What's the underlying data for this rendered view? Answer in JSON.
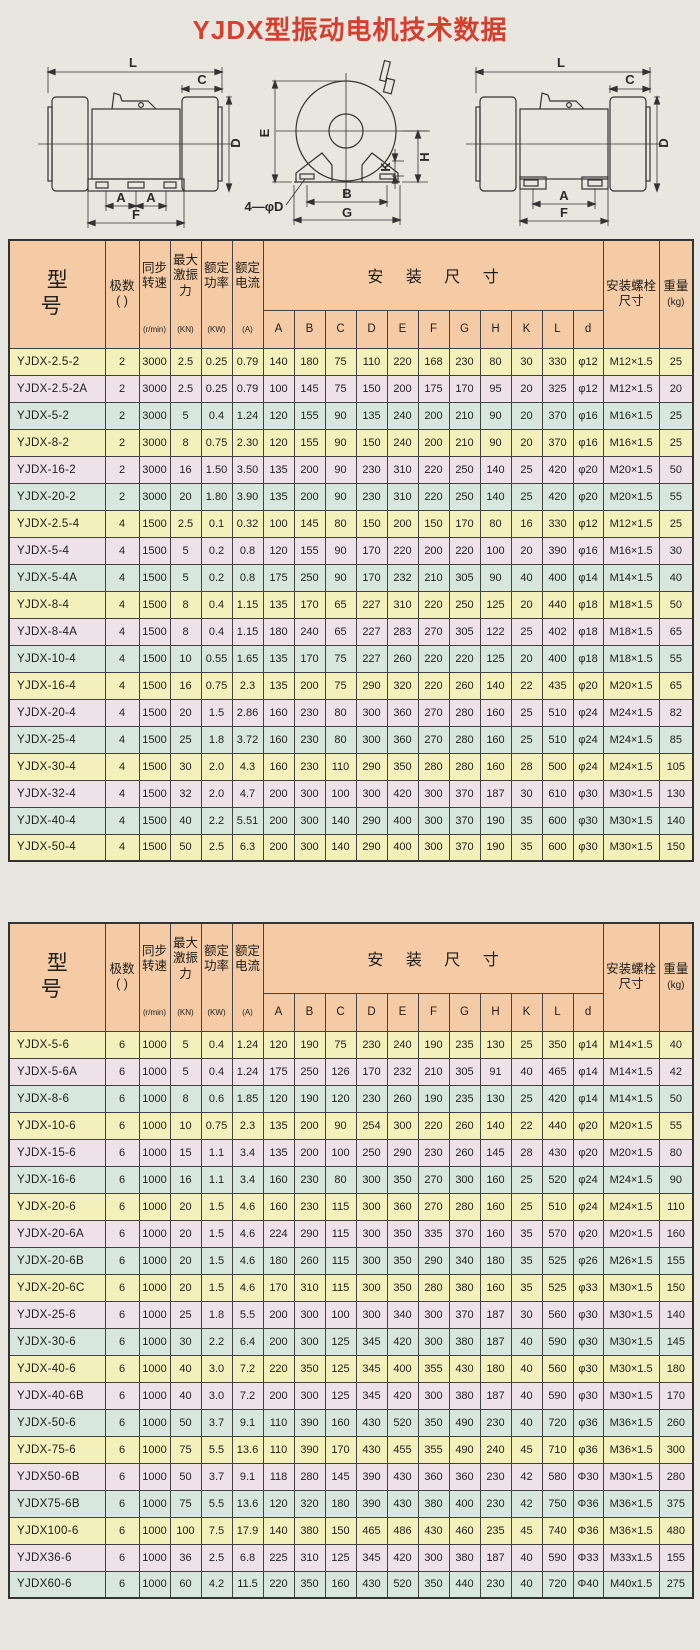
{
  "page": {
    "title": "YJDX型振动电机技术数据"
  },
  "diagram_labels": {
    "L": "L",
    "C": "C",
    "D": "D",
    "A": "A",
    "F": "F",
    "E": "E",
    "K": "K",
    "H": "H",
    "B": "B",
    "G": "G",
    "holes": "4—φD"
  },
  "header": {
    "model": "型 号",
    "poles": "极数",
    "poles_paren": "(  )",
    "speed": "同步转速",
    "speed_unit": "(r/min)",
    "force": "最大激振力",
    "force_unit": "(KN)",
    "power": "额定功率",
    "power_unit": "(KW)",
    "current": "额定电流",
    "current_unit": "(A)",
    "dims": "安 装 尺 寸",
    "dim_cols": [
      "A",
      "B",
      "C",
      "D",
      "E",
      "F",
      "G",
      "H",
      "K",
      "L",
      "d"
    ],
    "bolt": "安装螺栓尺寸",
    "weight": "重量",
    "weight_unit": "(kg)"
  },
  "table1": {
    "rows": [
      [
        "YJDX-2.5-2",
        "2",
        "3000",
        "2.5",
        "0.25",
        "0.79",
        "140",
        "180",
        "75",
        "110",
        "220",
        "168",
        "230",
        "80",
        "30",
        "330",
        "φ12",
        "M12×1.5",
        "25"
      ],
      [
        "YJDX-2.5-2A",
        "2",
        "3000",
        "2.5",
        "0.25",
        "0.79",
        "100",
        "145",
        "75",
        "150",
        "200",
        "175",
        "170",
        "95",
        "20",
        "325",
        "φ12",
        "M12×1.5",
        "20"
      ],
      [
        "YJDX-5-2",
        "2",
        "3000",
        "5",
        "0.4",
        "1.24",
        "120",
        "155",
        "90",
        "135",
        "240",
        "200",
        "210",
        "90",
        "20",
        "370",
        "φ16",
        "M16×1.5",
        "25"
      ],
      [
        "YJDX-8-2",
        "2",
        "3000",
        "8",
        "0.75",
        "2.30",
        "120",
        "155",
        "90",
        "150",
        "240",
        "200",
        "210",
        "90",
        "20",
        "370",
        "φ16",
        "M16×1.5",
        "25"
      ],
      [
        "YJDX-16-2",
        "2",
        "3000",
        "16",
        "1.50",
        "3.50",
        "135",
        "200",
        "90",
        "230",
        "310",
        "220",
        "250",
        "140",
        "25",
        "420",
        "φ20",
        "M20×1.5",
        "50"
      ],
      [
        "YJDX-20-2",
        "2",
        "3000",
        "20",
        "1.80",
        "3.90",
        "135",
        "200",
        "90",
        "230",
        "310",
        "220",
        "250",
        "140",
        "25",
        "420",
        "φ20",
        "M20×1.5",
        "55"
      ],
      [
        "YJDX-2.5-4",
        "4",
        "1500",
        "2.5",
        "0.1",
        "0.32",
        "100",
        "145",
        "80",
        "150",
        "200",
        "150",
        "170",
        "80",
        "16",
        "330",
        "φ12",
        "M12×1.5",
        "25"
      ],
      [
        "YJDX-5-4",
        "4",
        "1500",
        "5",
        "0.2",
        "0.8",
        "120",
        "155",
        "90",
        "170",
        "220",
        "200",
        "220",
        "100",
        "20",
        "390",
        "φ16",
        "M16×1.5",
        "30"
      ],
      [
        "YJDX-5-4A",
        "4",
        "1500",
        "5",
        "0.2",
        "0.8",
        "175",
        "250",
        "90",
        "170",
        "232",
        "210",
        "305",
        "90",
        "40",
        "400",
        "φ14",
        "M14×1.5",
        "40"
      ],
      [
        "YJDX-8-4",
        "4",
        "1500",
        "8",
        "0.4",
        "1.15",
        "135",
        "170",
        "65",
        "227",
        "310",
        "220",
        "250",
        "125",
        "20",
        "440",
        "φ18",
        "M18×1.5",
        "50"
      ],
      [
        "YJDX-8-4A",
        "4",
        "1500",
        "8",
        "0.4",
        "1.15",
        "180",
        "240",
        "65",
        "227",
        "283",
        "270",
        "305",
        "122",
        "25",
        "402",
        "φ18",
        "M18×1.5",
        "65"
      ],
      [
        "YJDX-10-4",
        "4",
        "1500",
        "10",
        "0.55",
        "1.65",
        "135",
        "170",
        "75",
        "227",
        "260",
        "220",
        "220",
        "125",
        "20",
        "400",
        "φ18",
        "M18×1.5",
        "55"
      ],
      [
        "YJDX-16-4",
        "4",
        "1500",
        "16",
        "0.75",
        "2.3",
        "135",
        "200",
        "75",
        "290",
        "320",
        "220",
        "260",
        "140",
        "22",
        "435",
        "φ20",
        "M20×1.5",
        "65"
      ],
      [
        "YJDX-20-4",
        "4",
        "1500",
        "20",
        "1.5",
        "2.86",
        "160",
        "230",
        "80",
        "300",
        "360",
        "270",
        "280",
        "160",
        "25",
        "510",
        "φ24",
        "M24×1.5",
        "82"
      ],
      [
        "YJDX-25-4",
        "4",
        "1500",
        "25",
        "1.8",
        "3.72",
        "160",
        "230",
        "80",
        "300",
        "360",
        "270",
        "280",
        "160",
        "25",
        "510",
        "φ24",
        "M24×1.5",
        "85"
      ],
      [
        "YJDX-30-4",
        "4",
        "1500",
        "30",
        "2.0",
        "4.3",
        "160",
        "230",
        "110",
        "290",
        "350",
        "280",
        "280",
        "160",
        "28",
        "500",
        "φ24",
        "M24×1.5",
        "105"
      ],
      [
        "YJDX-32-4",
        "4",
        "1500",
        "32",
        "2.0",
        "4.7",
        "200",
        "300",
        "100",
        "300",
        "420",
        "300",
        "370",
        "187",
        "30",
        "610",
        "φ30",
        "M30×1.5",
        "130"
      ],
      [
        "YJDX-40-4",
        "4",
        "1500",
        "40",
        "2.2",
        "5.51",
        "200",
        "300",
        "140",
        "290",
        "400",
        "300",
        "370",
        "190",
        "35",
        "600",
        "φ30",
        "M30×1.5",
        "140"
      ],
      [
        "YJDX-50-4",
        "4",
        "1500",
        "50",
        "2.5",
        "6.3",
        "200",
        "300",
        "140",
        "290",
        "400",
        "300",
        "370",
        "190",
        "35",
        "600",
        "φ30",
        "M30×1.5",
        "150"
      ]
    ]
  },
  "table2": {
    "rows": [
      [
        "YJDX-5-6",
        "6",
        "1000",
        "5",
        "0.4",
        "1.24",
        "120",
        "190",
        "75",
        "230",
        "240",
        "190",
        "235",
        "130",
        "25",
        "350",
        "φ14",
        "M14×1.5",
        "40"
      ],
      [
        "YJDX-5-6A",
        "6",
        "1000",
        "5",
        "0.4",
        "1.24",
        "175",
        "250",
        "126",
        "170",
        "232",
        "210",
        "305",
        "91",
        "40",
        "465",
        "φ14",
        "M14×1.5",
        "42"
      ],
      [
        "YJDX-8-6",
        "6",
        "1000",
        "8",
        "0.6",
        "1.85",
        "120",
        "190",
        "120",
        "230",
        "260",
        "190",
        "235",
        "130",
        "25",
        "420",
        "φ14",
        "M14×1.5",
        "50"
      ],
      [
        "YJDX-10-6",
        "6",
        "1000",
        "10",
        "0.75",
        "2.3",
        "135",
        "200",
        "90",
        "254",
        "300",
        "220",
        "260",
        "140",
        "22",
        "440",
        "φ20",
        "M20×1.5",
        "55"
      ],
      [
        "YJDX-15-6",
        "6",
        "1000",
        "15",
        "1.1",
        "3.4",
        "135",
        "200",
        "100",
        "250",
        "290",
        "230",
        "260",
        "145",
        "28",
        "430",
        "φ20",
        "M20×1.5",
        "80"
      ],
      [
        "YJDX-16-6",
        "6",
        "1000",
        "16",
        "1.1",
        "3.4",
        "160",
        "230",
        "80",
        "300",
        "350",
        "270",
        "300",
        "160",
        "25",
        "520",
        "φ24",
        "M24×1.5",
        "90"
      ],
      [
        "YJDX-20-6",
        "6",
        "1000",
        "20",
        "1.5",
        "4.6",
        "160",
        "230",
        "115",
        "300",
        "360",
        "270",
        "280",
        "160",
        "25",
        "510",
        "φ24",
        "M24×1.5",
        "110"
      ],
      [
        "YJDX-20-6A",
        "6",
        "1000",
        "20",
        "1.5",
        "4.6",
        "224",
        "290",
        "115",
        "300",
        "350",
        "335",
        "370",
        "160",
        "35",
        "570",
        "φ20",
        "M20×1.5",
        "160"
      ],
      [
        "YJDX-20-6B",
        "6",
        "1000",
        "20",
        "1.5",
        "4.6",
        "180",
        "260",
        "115",
        "300",
        "350",
        "290",
        "340",
        "180",
        "35",
        "525",
        "φ26",
        "M26×1.5",
        "155"
      ],
      [
        "YJDX-20-6C",
        "6",
        "1000",
        "20",
        "1.5",
        "4.6",
        "170",
        "310",
        "115",
        "300",
        "350",
        "280",
        "380",
        "160",
        "35",
        "525",
        "φ33",
        "M30×1.5",
        "150"
      ],
      [
        "YJDX-25-6",
        "6",
        "1000",
        "25",
        "1.8",
        "5.5",
        "200",
        "300",
        "100",
        "300",
        "340",
        "300",
        "370",
        "187",
        "30",
        "560",
        "φ30",
        "M30×1.5",
        "140"
      ],
      [
        "YJDX-30-6",
        "6",
        "1000",
        "30",
        "2.2",
        "6.4",
        "200",
        "300",
        "125",
        "345",
        "420",
        "300",
        "380",
        "187",
        "40",
        "590",
        "φ30",
        "M30×1.5",
        "145"
      ],
      [
        "YJDX-40-6",
        "6",
        "1000",
        "40",
        "3.0",
        "7.2",
        "220",
        "350",
        "125",
        "345",
        "400",
        "355",
        "430",
        "180",
        "40",
        "560",
        "φ30",
        "M30×1.5",
        "180"
      ],
      [
        "YJDX-40-6B",
        "6",
        "1000",
        "40",
        "3.0",
        "7.2",
        "200",
        "300",
        "125",
        "345",
        "420",
        "300",
        "380",
        "187",
        "40",
        "590",
        "φ30",
        "M30×1.5",
        "170"
      ],
      [
        "YJDX-50-6",
        "6",
        "1000",
        "50",
        "3.7",
        "9.1",
        "110",
        "390",
        "160",
        "430",
        "520",
        "350",
        "490",
        "230",
        "40",
        "720",
        "φ36",
        "M36×1.5",
        "260"
      ],
      [
        "YJDX-75-6",
        "6",
        "1000",
        "75",
        "5.5",
        "13.6",
        "110",
        "390",
        "170",
        "430",
        "455",
        "355",
        "490",
        "240",
        "45",
        "710",
        "φ36",
        "M36×1.5",
        "300"
      ],
      [
        "YJDX50-6B",
        "6",
        "1000",
        "50",
        "3.7",
        "9.1",
        "118",
        "280",
        "145",
        "390",
        "430",
        "360",
        "360",
        "230",
        "42",
        "580",
        "Φ30",
        "M30×1.5",
        "280"
      ],
      [
        "YJDX75-6B",
        "6",
        "1000",
        "75",
        "5.5",
        "13.6",
        "120",
        "320",
        "180",
        "390",
        "430",
        "380",
        "400",
        "230",
        "42",
        "750",
        "Φ36",
        "M36×1.5",
        "375"
      ],
      [
        "YJDX100-6",
        "6",
        "1000",
        "100",
        "7.5",
        "17.9",
        "140",
        "380",
        "150",
        "465",
        "486",
        "430",
        "460",
        "235",
        "45",
        "740",
        "Φ36",
        "M36×1.5",
        "480"
      ],
      [
        "YJDX36-6",
        "6",
        "1000",
        "36",
        "2.5",
        "6.8",
        "225",
        "310",
        "125",
        "345",
        "420",
        "300",
        "380",
        "187",
        "40",
        "590",
        "Φ33",
        "M33x1.5",
        "155"
      ],
      [
        "YJDX60-6",
        "6",
        "1000",
        "60",
        "4.2",
        "11.5",
        "220",
        "350",
        "160",
        "430",
        "520",
        "350",
        "440",
        "230",
        "40",
        "720",
        "Φ40",
        "M40x1.5",
        "275"
      ]
    ]
  }
}
